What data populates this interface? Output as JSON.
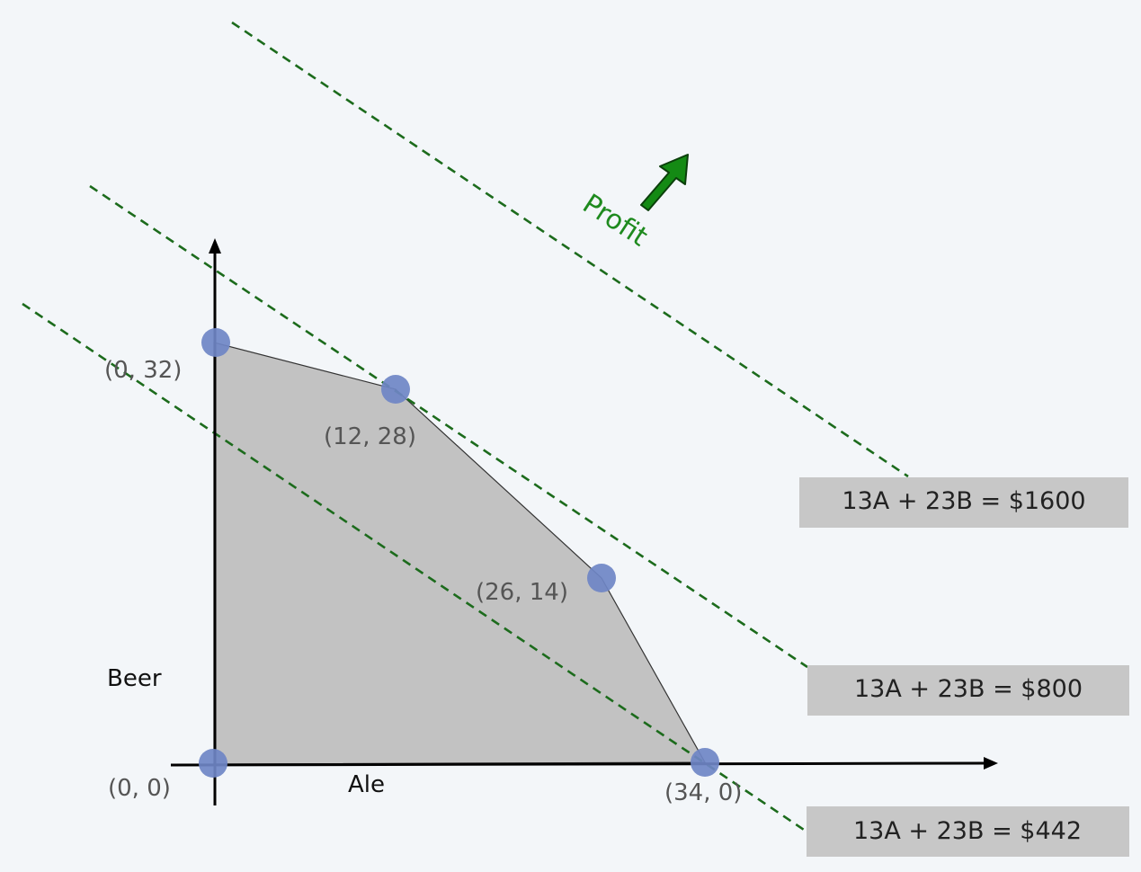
{
  "colors": {
    "background": "#f3f6f9",
    "feasible_region": "#c2c2c2",
    "vertex": "#6f86c6",
    "iso_profit_line": "#1c6b1c",
    "profit_arrow": "#148a14",
    "equation_box": "#c7c7c7"
  },
  "axes": {
    "x_label": "Ale",
    "y_label": "Beer"
  },
  "vertices": [
    {
      "label": "(0, 0)",
      "A": 0,
      "B": 0
    },
    {
      "label": "(0, 32)",
      "A": 0,
      "B": 32
    },
    {
      "label": "(12, 28)",
      "A": 12,
      "B": 28
    },
    {
      "label": "(26, 14)",
      "A": 26,
      "B": 14
    },
    {
      "label": "(34, 0)",
      "A": 34,
      "B": 0
    }
  ],
  "profit_label": "Profit",
  "profit_arrow_icon": "arrow-up-right-icon",
  "iso_profit_lines": [
    {
      "equation": "13A + 23B = $1600",
      "value": 1600
    },
    {
      "equation": "13A + 23B = $800",
      "value": 800
    },
    {
      "equation": "13A + 23B = $442",
      "value": 442
    }
  ]
}
